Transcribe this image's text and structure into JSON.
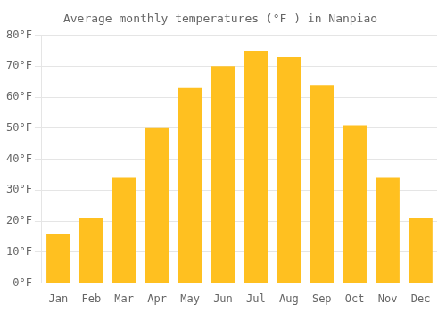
{
  "chart_data": {
    "type": "bar",
    "title": "Average monthly temperatures (°F ) in Nanpiao",
    "categories": [
      "Jan",
      "Feb",
      "Mar",
      "Apr",
      "May",
      "Jun",
      "Jul",
      "Aug",
      "Sep",
      "Oct",
      "Nov",
      "Dec"
    ],
    "values": [
      16,
      21,
      34,
      50,
      63,
      70,
      75,
      73,
      64,
      51,
      34,
      21
    ],
    "color": "#FFC020",
    "ylim": [
      0,
      80
    ],
    "yticks": [
      {
        "value": 0,
        "label": "0°F"
      },
      {
        "value": 10,
        "label": "10°F"
      },
      {
        "value": 20,
        "label": "20°F"
      },
      {
        "value": 30,
        "label": "30°F"
      },
      {
        "value": 40,
        "label": "40°F"
      },
      {
        "value": 50,
        "label": "50°F"
      },
      {
        "value": 60,
        "label": "60°F"
      },
      {
        "value": 70,
        "label": "70°F"
      },
      {
        "value": 80,
        "label": "80°F"
      }
    ],
    "grid": true
  }
}
